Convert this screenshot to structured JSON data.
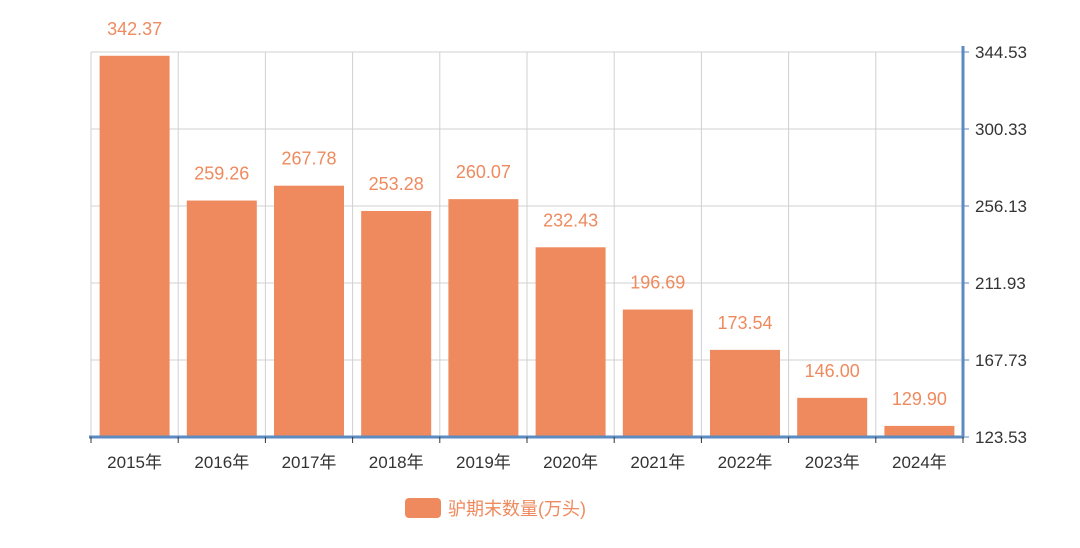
{
  "chart_data": {
    "type": "bar",
    "categories": [
      "2015年",
      "2016年",
      "2017年",
      "2018年",
      "2019年",
      "2020年",
      "2021年",
      "2022年",
      "2023年",
      "2024年"
    ],
    "series": [
      {
        "name": "驴期末数量(万头)",
        "values": [
          342.37,
          259.26,
          267.78,
          253.28,
          260.07,
          232.43,
          196.69,
          173.54,
          146.0,
          129.9
        ]
      }
    ],
    "data_labels": [
      "342.37",
      "259.26",
      "267.78",
      "253.28",
      "260.07",
      "232.43",
      "196.69",
      "173.54",
      "146.00",
      "129.90"
    ],
    "y_ticks": [
      "344.53",
      "300.33",
      "256.13",
      "211.93",
      "167.73",
      "123.53"
    ],
    "ylim": [
      123.53,
      344.53
    ],
    "y_axis_position": "right",
    "grid": true,
    "legend_position": "bottom-center",
    "colors": {
      "bar": "#EF8A5E",
      "label": "#EF8A5E",
      "axis": "#5B8BC0",
      "grid": "#D0D0D0",
      "tick_text": "#333333"
    }
  }
}
